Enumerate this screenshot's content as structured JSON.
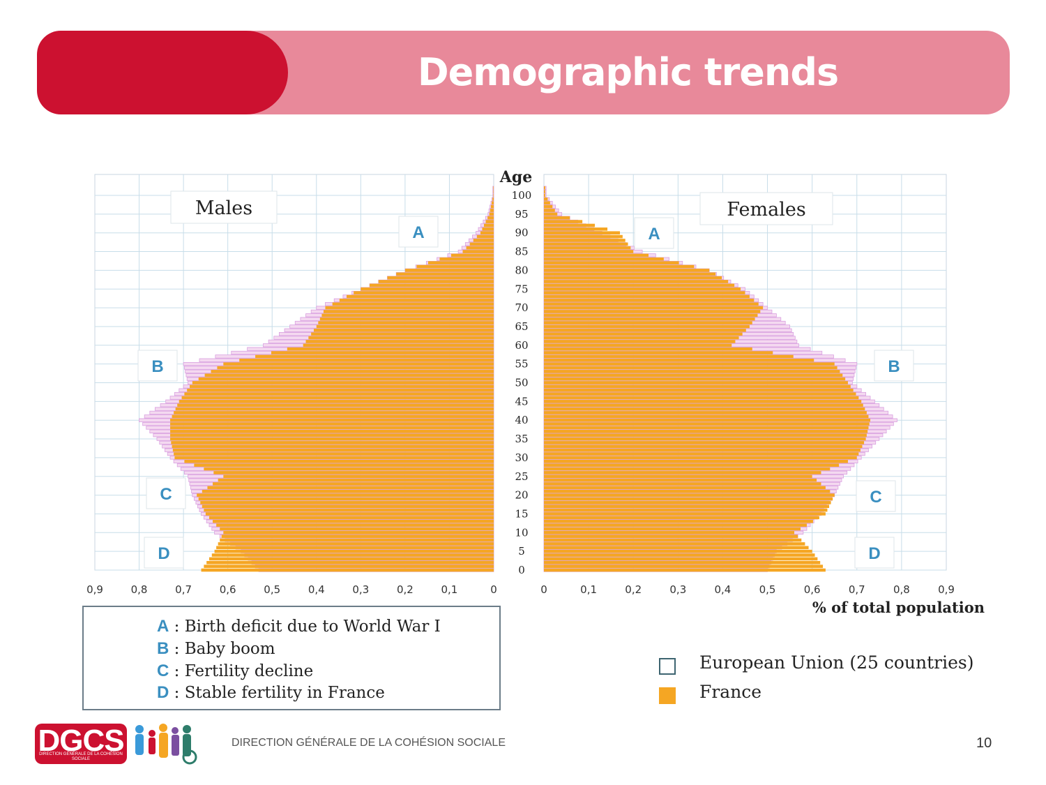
{
  "slide": {
    "title": "Demographic trends",
    "footer_org": "DIRECTION GÉNÉRALE DE LA COHÉSION SOCIALE",
    "logo_text": "DGCS",
    "logo_subtext": "DIRECTION GÉNÉRALE DE LA COHÉSION SOCIALE",
    "page_number": "10",
    "colors": {
      "banner_red": "#cc1130",
      "banner_pink": "#e8899a",
      "france": "#f5a623",
      "eu_outline": "#d9a0e0"
    }
  },
  "chart_data": {
    "type": "bar",
    "orientation": "horizontal",
    "layout": "population-pyramid",
    "yaxis_title": "Age",
    "xlabel": "% of total population",
    "age_ticks": [
      "0",
      "5",
      "10",
      "15",
      "20",
      "25",
      "30",
      "35",
      "40",
      "45",
      "50",
      "55",
      "60",
      "65",
      "70",
      "75",
      "80",
      "85",
      "90",
      "95",
      "100"
    ],
    "x_ticks": [
      "0,9",
      "0,8",
      "0,7",
      "0,6",
      "0,5",
      "0,4",
      "0,3",
      "0,2",
      "0,1",
      "0"
    ],
    "x_ticks_right": [
      "0",
      "0,1",
      "0,2",
      "0,3",
      "0,4",
      "0,5",
      "0,6",
      "0,7",
      "0,8",
      "0,9"
    ],
    "xlim": [
      0,
      0.9
    ],
    "ylim": [
      0,
      103
    ],
    "grid": true,
    "panels": [
      {
        "name": "Males",
        "label": "Males",
        "side": "left"
      },
      {
        "name": "Females",
        "label": "Females",
        "side": "right"
      }
    ],
    "series": [
      {
        "name": "European Union (25 countries)",
        "style": "outline",
        "ages": [
          0,
          5,
          10,
          15,
          20,
          25,
          30,
          35,
          40,
          45,
          50,
          55,
          60,
          65,
          70,
          75,
          80,
          85,
          90,
          95,
          100
        ],
        "males": [
          0.53,
          0.57,
          0.63,
          0.66,
          0.68,
          0.69,
          0.73,
          0.76,
          0.8,
          0.74,
          0.69,
          0.7,
          0.52,
          0.46,
          0.4,
          0.3,
          0.2,
          0.08,
          0.04,
          0.013,
          0.002
        ],
        "females": [
          0.5,
          0.52,
          0.58,
          0.62,
          0.65,
          0.67,
          0.71,
          0.75,
          0.79,
          0.74,
          0.69,
          0.7,
          0.57,
          0.55,
          0.5,
          0.45,
          0.37,
          0.22,
          0.13,
          0.04,
          0.005
        ]
      },
      {
        "name": "France",
        "style": "fill",
        "ages": [
          0,
          5,
          10,
          15,
          20,
          25,
          30,
          35,
          40,
          45,
          50,
          55,
          60,
          65,
          70,
          75,
          80,
          85,
          90,
          95,
          100
        ],
        "males": [
          0.66,
          0.63,
          0.61,
          0.65,
          0.67,
          0.61,
          0.72,
          0.73,
          0.73,
          0.71,
          0.68,
          0.61,
          0.43,
          0.4,
          0.38,
          0.3,
          0.2,
          0.07,
          0.03,
          0.01,
          0.001
        ],
        "females": [
          0.63,
          0.6,
          0.56,
          0.63,
          0.65,
          0.6,
          0.7,
          0.72,
          0.73,
          0.71,
          0.68,
          0.65,
          0.42,
          0.46,
          0.49,
          0.44,
          0.37,
          0.2,
          0.17,
          0.03,
          0.003
        ]
      }
    ],
    "annotations": [
      {
        "key": "A",
        "age": 90
      },
      {
        "key": "B",
        "age": 55
      },
      {
        "key": "C",
        "age": 21
      },
      {
        "key": "D",
        "age": 5
      }
    ],
    "annotation_legend": [
      {
        "key": "A",
        "text": "Birth deficit due to World War I"
      },
      {
        "key": "B",
        "text": "Baby boom"
      },
      {
        "key": "C",
        "text": "Fertility decline"
      },
      {
        "key": "D",
        "text": "Stable fertility in France"
      }
    ]
  }
}
